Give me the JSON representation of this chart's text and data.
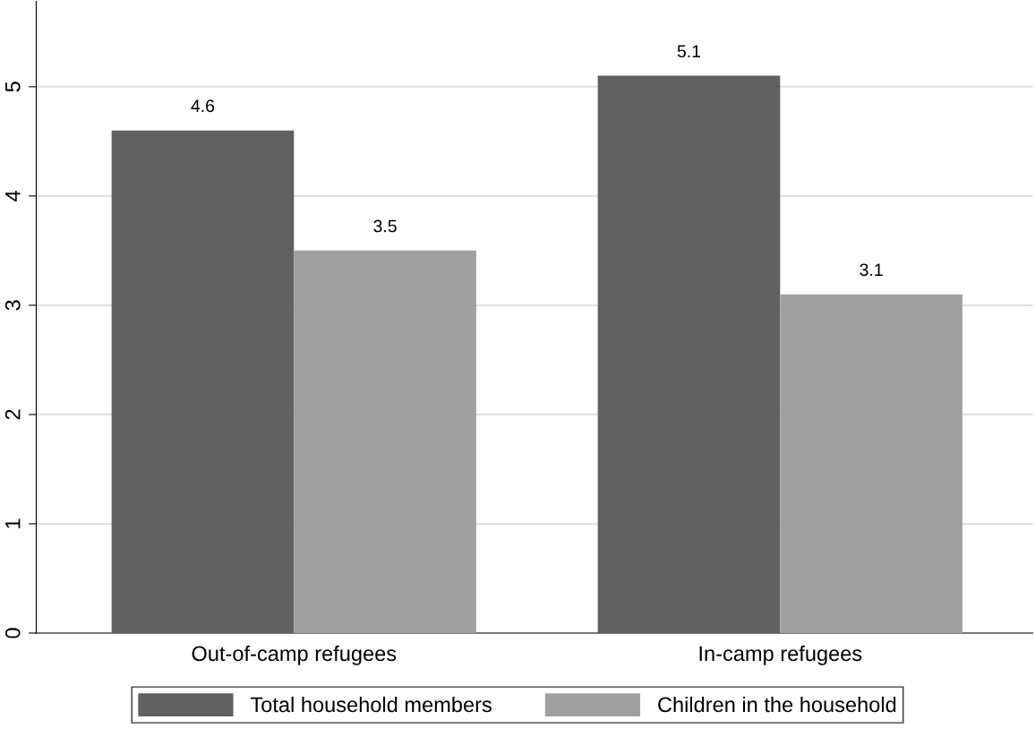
{
  "chart_data": {
    "type": "bar",
    "categories": [
      "Out-of-camp refugees",
      "In-camp refugees"
    ],
    "series": [
      {
        "name": "Total household members",
        "color": "#606060",
        "values": [
          4.6,
          5.1
        ]
      },
      {
        "name": "Children in the household",
        "color": "#a0a0a0",
        "values": [
          3.5,
          3.1
        ]
      }
    ],
    "ylim": [
      0,
      5.78
    ],
    "yticks": [
      0,
      1,
      2,
      3,
      4,
      5
    ],
    "grid": "y",
    "legend": "bottom",
    "data_labels": true
  }
}
